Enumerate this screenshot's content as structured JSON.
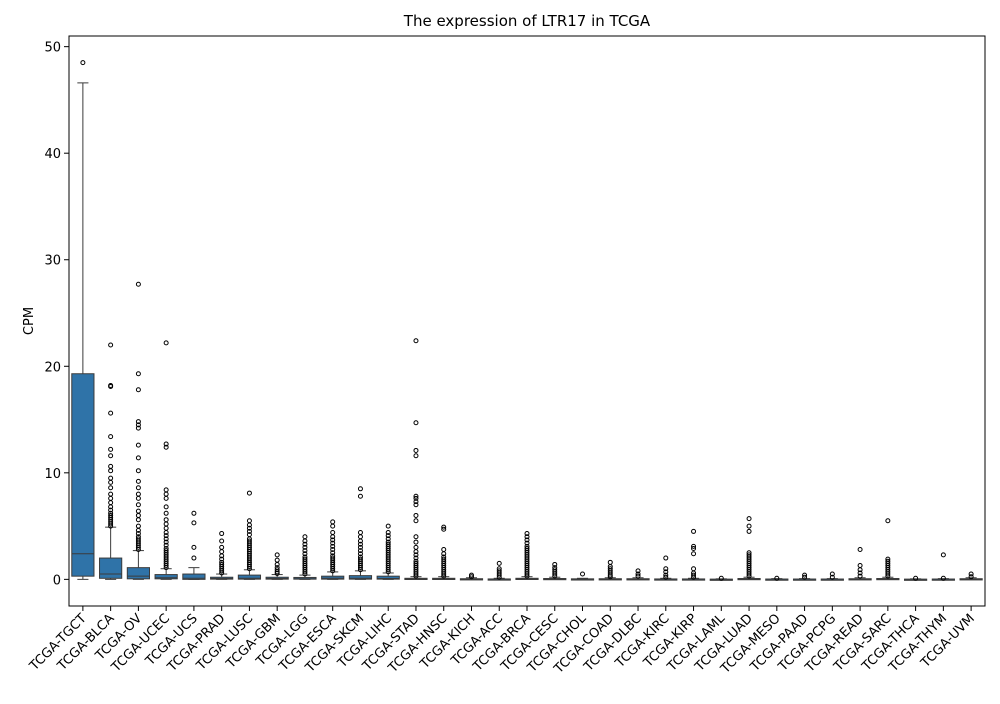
{
  "chart_data": {
    "type": "box",
    "title": "The expression of LTR17 in TCGA",
    "xlabel": "",
    "ylabel": "CPM",
    "ylim": [
      -2.5,
      51
    ],
    "yticks": [
      0,
      10,
      20,
      30,
      40,
      50
    ],
    "box_color": "#2f73a8",
    "categories": [
      "TCGA-TGCT",
      "TCGA-BLCA",
      "TCGA-OV",
      "TCGA-UCEC",
      "TCGA-UCS",
      "TCGA-PRAD",
      "TCGA-LUSC",
      "TCGA-GBM",
      "TCGA-LGG",
      "TCGA-ESCA",
      "TCGA-SKCM",
      "TCGA-LIHC",
      "TCGA-STAD",
      "TCGA-HNSC",
      "TCGA-KICH",
      "TCGA-ACC",
      "TCGA-BRCA",
      "TCGA-CESC",
      "TCGA-CHOL",
      "TCGA-COAD",
      "TCGA-DLBC",
      "TCGA-KIRC",
      "TCGA-KIRP",
      "TCGA-LAML",
      "TCGA-LUAD",
      "TCGA-MESO",
      "TCGA-PAAD",
      "TCGA-PCPG",
      "TCGA-READ",
      "TCGA-SARC",
      "TCGA-THCA",
      "TCGA-THYM",
      "TCGA-UVM"
    ],
    "boxes": [
      {
        "q1": 0.3,
        "median": 2.4,
        "q3": 19.3,
        "wlo": 0.0,
        "whi": 46.6,
        "outliers": [
          48.5
        ]
      },
      {
        "q1": 0.1,
        "median": 0.5,
        "q3": 2.0,
        "wlo": 0.0,
        "whi": 4.9,
        "outliers": [
          5.0,
          5.2,
          5.4,
          5.6,
          5.8,
          6.0,
          6.2,
          6.5,
          6.8,
          7.2,
          7.6,
          8.0,
          8.6,
          9.1,
          9.5,
          10.2,
          10.6,
          11.6,
          12.2,
          13.4,
          15.6,
          18.1,
          18.2,
          22.0
        ]
      },
      {
        "q1": 0.05,
        "median": 0.3,
        "q3": 1.1,
        "wlo": 0.0,
        "whi": 2.7,
        "outliers": [
          2.8,
          3.0,
          3.2,
          3.4,
          3.6,
          3.8,
          4.0,
          4.3,
          4.6,
          5.0,
          5.6,
          6.0,
          6.4,
          7.0,
          7.6,
          8.0,
          8.6,
          9.2,
          10.2,
          11.4,
          12.6,
          14.2,
          14.5,
          14.8,
          17.8,
          19.3,
          27.7
        ]
      },
      {
        "q1": 0.05,
        "median": 0.15,
        "q3": 0.45,
        "wlo": 0.0,
        "whi": 1.0,
        "outliers": [
          1.1,
          1.3,
          1.5,
          1.7,
          1.9,
          2.1,
          2.3,
          2.5,
          2.7,
          2.9,
          3.2,
          3.5,
          3.8,
          4.1,
          4.4,
          4.8,
          5.2,
          5.6,
          6.2,
          6.8,
          7.6,
          8.0,
          8.4,
          12.4,
          12.7,
          22.2
        ]
      },
      {
        "q1": 0.0,
        "median": 0.1,
        "q3": 0.5,
        "wlo": 0.0,
        "whi": 1.1,
        "outliers": [
          2.0,
          3.0,
          5.3,
          6.2
        ]
      },
      {
        "q1": 0.02,
        "median": 0.08,
        "q3": 0.2,
        "wlo": 0.0,
        "whi": 0.5,
        "outliers": [
          0.6,
          0.8,
          1.0,
          1.2,
          1.4,
          1.6,
          1.9,
          2.2,
          2.6,
          3.0,
          3.6,
          4.3
        ]
      },
      {
        "q1": 0.02,
        "median": 0.1,
        "q3": 0.4,
        "wlo": 0.0,
        "whi": 0.9,
        "outliers": [
          1.0,
          1.2,
          1.4,
          1.6,
          1.8,
          2.0,
          2.2,
          2.4,
          2.6,
          2.8,
          3.0,
          3.2,
          3.4,
          3.6,
          3.8,
          4.2,
          4.5,
          4.8,
          5.1,
          5.5,
          8.1
        ]
      },
      {
        "q1": 0.02,
        "median": 0.08,
        "q3": 0.2,
        "wlo": 0.0,
        "whi": 0.45,
        "outliers": [
          0.55,
          0.7,
          0.9,
          1.1,
          1.4,
          1.8,
          2.3
        ]
      },
      {
        "q1": 0.02,
        "median": 0.06,
        "q3": 0.18,
        "wlo": 0.0,
        "whi": 0.4,
        "outliers": [
          0.5,
          0.7,
          0.9,
          1.1,
          1.3,
          1.5,
          1.7,
          1.9,
          2.1,
          2.4,
          2.7,
          3.0,
          3.3,
          3.6,
          4.0
        ]
      },
      {
        "q1": 0.02,
        "median": 0.1,
        "q3": 0.3,
        "wlo": 0.0,
        "whi": 0.7,
        "outliers": [
          0.8,
          1.0,
          1.2,
          1.4,
          1.6,
          1.8,
          2.0,
          2.2,
          2.5,
          2.8,
          3.1,
          3.4,
          3.7,
          4.0,
          4.4,
          5.0,
          5.4
        ]
      },
      {
        "q1": 0.02,
        "median": 0.1,
        "q3": 0.35,
        "wlo": 0.0,
        "whi": 0.8,
        "outliers": [
          0.9,
          1.1,
          1.3,
          1.5,
          1.7,
          1.9,
          2.1,
          2.4,
          2.7,
          3.0,
          3.3,
          3.6,
          4.0,
          4.4,
          7.8,
          8.5
        ]
      },
      {
        "q1": 0.02,
        "median": 0.08,
        "q3": 0.3,
        "wlo": 0.0,
        "whi": 0.6,
        "outliers": [
          0.7,
          0.9,
          1.1,
          1.3,
          1.5,
          1.7,
          1.9,
          2.1,
          2.3,
          2.5,
          2.7,
          2.9,
          3.1,
          3.3,
          3.5,
          3.8,
          4.1,
          4.4,
          5.0
        ]
      },
      {
        "q1": 0.0,
        "median": 0.03,
        "q3": 0.1,
        "wlo": 0.0,
        "whi": 0.25,
        "outliers": [
          0.3,
          0.5,
          0.7,
          0.9,
          1.1,
          1.3,
          1.5,
          1.7,
          2.0,
          2.3,
          2.6,
          3.0,
          3.5,
          4.0,
          5.5,
          6.0,
          7.0,
          7.3,
          7.6,
          7.8,
          11.6,
          12.1,
          14.7,
          22.4
        ]
      },
      {
        "q1": 0.0,
        "median": 0.03,
        "q3": 0.1,
        "wlo": 0.0,
        "whi": 0.25,
        "outliers": [
          0.3,
          0.5,
          0.7,
          0.9,
          1.1,
          1.3,
          1.5,
          1.7,
          1.9,
          2.1,
          2.4,
          2.8,
          4.7,
          4.9
        ]
      },
      {
        "q1": 0.0,
        "median": 0.02,
        "q3": 0.06,
        "wlo": 0.0,
        "whi": 0.15,
        "outliers": [
          0.25,
          0.4
        ]
      },
      {
        "q1": 0.0,
        "median": 0.01,
        "q3": 0.04,
        "wlo": 0.0,
        "whi": 0.1,
        "outliers": [
          0.2,
          0.4,
          0.6,
          0.8,
          1.0,
          1.5
        ]
      },
      {
        "q1": 0.0,
        "median": 0.03,
        "q3": 0.1,
        "wlo": 0.0,
        "whi": 0.25,
        "outliers": [
          0.3,
          0.5,
          0.7,
          0.9,
          1.1,
          1.3,
          1.5,
          1.7,
          1.9,
          2.1,
          2.3,
          2.5,
          2.7,
          2.9,
          3.1,
          3.4,
          3.7,
          4.0,
          4.3
        ]
      },
      {
        "q1": 0.0,
        "median": 0.02,
        "q3": 0.08,
        "wlo": 0.0,
        "whi": 0.2,
        "outliers": [
          0.3,
          0.5,
          0.7,
          0.9,
          1.1,
          1.4
        ]
      },
      {
        "q1": 0.0,
        "median": 0.02,
        "q3": 0.05,
        "wlo": 0.0,
        "whi": 0.1,
        "outliers": [
          0.5
        ]
      },
      {
        "q1": 0.0,
        "median": 0.02,
        "q3": 0.06,
        "wlo": 0.0,
        "whi": 0.15,
        "outliers": [
          0.25,
          0.4,
          0.6,
          0.8,
          1.0,
          1.2,
          1.6
        ]
      },
      {
        "q1": 0.0,
        "median": 0.02,
        "q3": 0.06,
        "wlo": 0.0,
        "whi": 0.15,
        "outliers": [
          0.3,
          0.5,
          0.8
        ]
      },
      {
        "q1": 0.0,
        "median": 0.01,
        "q3": 0.04,
        "wlo": 0.0,
        "whi": 0.1,
        "outliers": [
          0.2,
          0.4,
          0.7,
          1.0,
          2.0
        ]
      },
      {
        "q1": 0.0,
        "median": 0.01,
        "q3": 0.04,
        "wlo": 0.0,
        "whi": 0.1,
        "outliers": [
          0.2,
          0.4,
          0.6,
          1.0,
          2.4,
          2.9,
          3.1,
          4.5
        ]
      },
      {
        "q1": 0.0,
        "median": 0.0,
        "q3": 0.02,
        "wlo": 0.0,
        "whi": 0.05,
        "outliers": [
          0.1
        ]
      },
      {
        "q1": 0.0,
        "median": 0.02,
        "q3": 0.08,
        "wlo": 0.0,
        "whi": 0.2,
        "outliers": [
          0.3,
          0.5,
          0.7,
          0.9,
          1.1,
          1.3,
          1.5,
          1.7,
          1.9,
          2.1,
          2.3,
          2.5,
          4.5,
          5.0,
          5.7
        ]
      },
      {
        "q1": 0.0,
        "median": 0.01,
        "q3": 0.03,
        "wlo": 0.0,
        "whi": 0.07,
        "outliers": [
          0.1
        ]
      },
      {
        "q1": 0.0,
        "median": 0.01,
        "q3": 0.03,
        "wlo": 0.0,
        "whi": 0.07,
        "outliers": [
          0.2,
          0.4
        ]
      },
      {
        "q1": 0.0,
        "median": 0.01,
        "q3": 0.03,
        "wlo": 0.0,
        "whi": 0.07,
        "outliers": [
          0.2,
          0.5
        ]
      },
      {
        "q1": 0.0,
        "median": 0.02,
        "q3": 0.06,
        "wlo": 0.0,
        "whi": 0.15,
        "outliers": [
          0.3,
          0.6,
          0.9,
          1.3,
          2.8
        ]
      },
      {
        "q1": 0.0,
        "median": 0.02,
        "q3": 0.08,
        "wlo": 0.0,
        "whi": 0.2,
        "outliers": [
          0.3,
          0.5,
          0.7,
          0.9,
          1.1,
          1.3,
          1.5,
          1.7,
          1.9,
          5.5
        ]
      },
      {
        "q1": 0.0,
        "median": 0.0,
        "q3": 0.02,
        "wlo": 0.0,
        "whi": 0.05,
        "outliers": [
          0.1
        ]
      },
      {
        "q1": 0.0,
        "median": 0.01,
        "q3": 0.03,
        "wlo": 0.0,
        "whi": 0.07,
        "outliers": [
          0.1,
          2.3
        ]
      },
      {
        "q1": 0.0,
        "median": 0.02,
        "q3": 0.06,
        "wlo": 0.0,
        "whi": 0.15,
        "outliers": [
          0.25,
          0.5
        ]
      }
    ]
  }
}
